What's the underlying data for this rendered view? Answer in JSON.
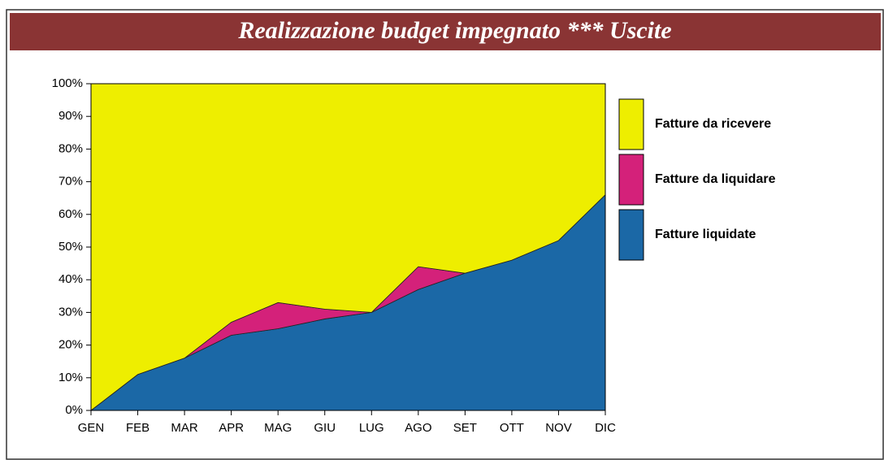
{
  "chart_data": {
    "type": "area",
    "stacked": true,
    "title": "Realizzazione budget impegnato *** Uscite",
    "categories": [
      "GEN",
      "FEB",
      "MAR",
      "APR",
      "MAG",
      "GIU",
      "LUG",
      "AGO",
      "SET",
      "OTT",
      "NOV",
      "DIC"
    ],
    "series": [
      {
        "name": "Fatture liquidate",
        "color": "#1b68a6",
        "values": [
          0,
          11,
          16,
          23,
          25,
          28,
          30,
          37,
          42,
          46,
          52,
          66
        ]
      },
      {
        "name": "Fatture da liquidare",
        "color": "#d4217a",
        "values": [
          0,
          0,
          0,
          4,
          8,
          3,
          0,
          7,
          0,
          0,
          0,
          0
        ]
      },
      {
        "name": "Fatture da ricevere",
        "color": "#eeee00",
        "values": [
          100,
          89,
          84,
          73,
          67,
          69,
          70,
          56,
          58,
          54,
          48,
          34
        ]
      }
    ],
    "ylim": [
      0,
      100
    ],
    "yticks": [
      {
        "value": 0,
        "label": "0%"
      },
      {
        "value": 10,
        "label": "10%"
      },
      {
        "value": 20,
        "label": "20%"
      },
      {
        "value": 30,
        "label": "30%"
      },
      {
        "value": 40,
        "label": "40%"
      },
      {
        "value": 50,
        "label": "50%"
      },
      {
        "value": 60,
        "label": "60%"
      },
      {
        "value": 70,
        "label": "70%"
      },
      {
        "value": 80,
        "label": "80%"
      },
      {
        "value": 90,
        "label": "90%"
      },
      {
        "value": 100,
        "label": "100%"
      }
    ],
    "legend": "right"
  }
}
